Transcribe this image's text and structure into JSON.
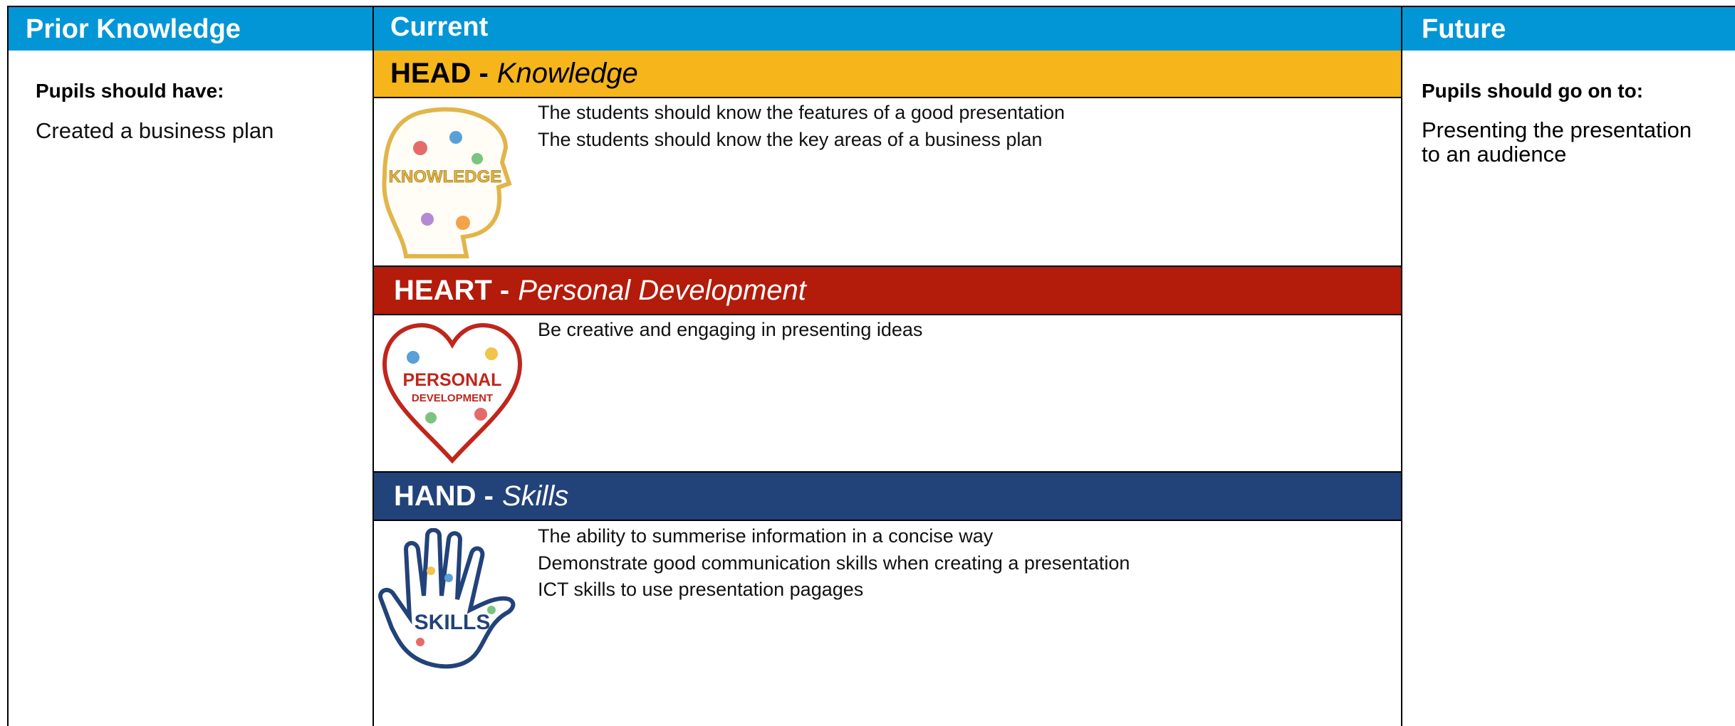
{
  "header": {
    "prior": "Prior Knowledge",
    "current": "Current",
    "future": "Future"
  },
  "prior": {
    "heading": "Pupils should have:",
    "items": [
      "Created a business plan"
    ]
  },
  "current": {
    "sections": [
      {
        "label": "HEAD -",
        "sublabel": "Knowledge",
        "icon_text": "KNOWLEDGE",
        "items": [
          "The students should know the features of a good presentation",
          "The students should know the key areas of a business plan"
        ]
      },
      {
        "label": "HEART -",
        "sublabel": "Personal Development",
        "icon_text": [
          "PERSONAL",
          "DEVELOPMENT"
        ],
        "items": [
          "Be creative and engaging in presenting ideas"
        ]
      },
      {
        "label": "HAND -",
        "sublabel": "Skills",
        "icon_text": "SKILLS",
        "items": [
          "The ability to summerise information in a concise way",
          "Demonstrate good communication skills when creating a presentation",
          "ICT skills to use presentation pagages"
        ]
      }
    ]
  },
  "future": {
    "heading": "Pupils should go on to:",
    "items": [
      "Presenting the presentation to an audience"
    ]
  }
}
